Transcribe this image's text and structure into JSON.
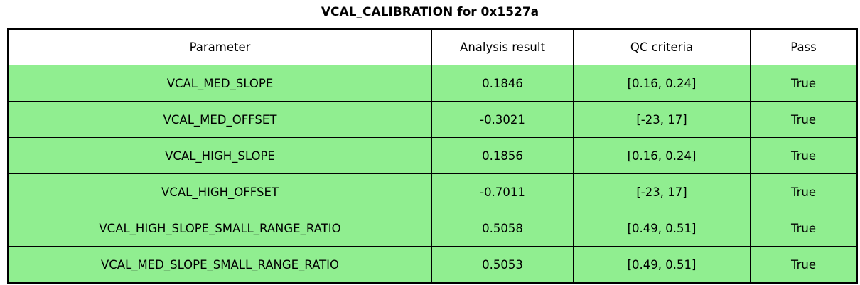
{
  "title": "VCAL_CALIBRATION for 0x1527a",
  "colors": {
    "row_background": "#90EE90",
    "header_background": "#FFFFFF",
    "border": "#000000",
    "text": "#000000",
    "page_background": "#FFFFFF"
  },
  "table": {
    "columns": [
      "Parameter",
      "Analysis result",
      "QC criteria",
      "Pass"
    ],
    "rows": [
      [
        "VCAL_MED_SLOPE",
        "0.1846",
        "[0.16, 0.24]",
        "True"
      ],
      [
        "VCAL_MED_OFFSET",
        "-0.3021",
        "[-23, 17]",
        "True"
      ],
      [
        "VCAL_HIGH_SLOPE",
        "0.1856",
        "[0.16, 0.24]",
        "True"
      ],
      [
        "VCAL_HIGH_OFFSET",
        "-0.7011",
        "[-23, 17]",
        "True"
      ],
      [
        "VCAL_HIGH_SLOPE_SMALL_RANGE_RATIO",
        "0.5058",
        "[0.49, 0.51]",
        "True"
      ],
      [
        "VCAL_MED_SLOPE_SMALL_RANGE_RATIO",
        "0.5053",
        "[0.49, 0.51]",
        "True"
      ]
    ]
  },
  "chart_data": {
    "type": "table",
    "title": "VCAL_CALIBRATION for 0x1527a",
    "columns": [
      "Parameter",
      "Analysis result",
      "QC criteria",
      "Pass"
    ],
    "rows": [
      {
        "parameter": "VCAL_MED_SLOPE",
        "analysis_result": 0.1846,
        "qc_criteria": "[0.16, 0.24]",
        "pass": true
      },
      {
        "parameter": "VCAL_MED_OFFSET",
        "analysis_result": -0.3021,
        "qc_criteria": "[-23, 17]",
        "pass": true
      },
      {
        "parameter": "VCAL_HIGH_SLOPE",
        "analysis_result": 0.1856,
        "qc_criteria": "[0.16, 0.24]",
        "pass": true
      },
      {
        "parameter": "VCAL_HIGH_OFFSET",
        "analysis_result": -0.7011,
        "qc_criteria": "[-23, 17]",
        "pass": true
      },
      {
        "parameter": "VCAL_HIGH_SLOPE_SMALL_RANGE_RATIO",
        "analysis_result": 0.5058,
        "qc_criteria": "[0.49, 0.51]",
        "pass": true
      },
      {
        "parameter": "VCAL_MED_SLOPE_SMALL_RANGE_RATIO",
        "analysis_result": 0.5053,
        "qc_criteria": "[0.49, 0.51]",
        "pass": true
      }
    ],
    "layout_hints": {
      "all_rows_highlighted_pass_green": true,
      "header_background": "white",
      "grid": "on"
    }
  }
}
